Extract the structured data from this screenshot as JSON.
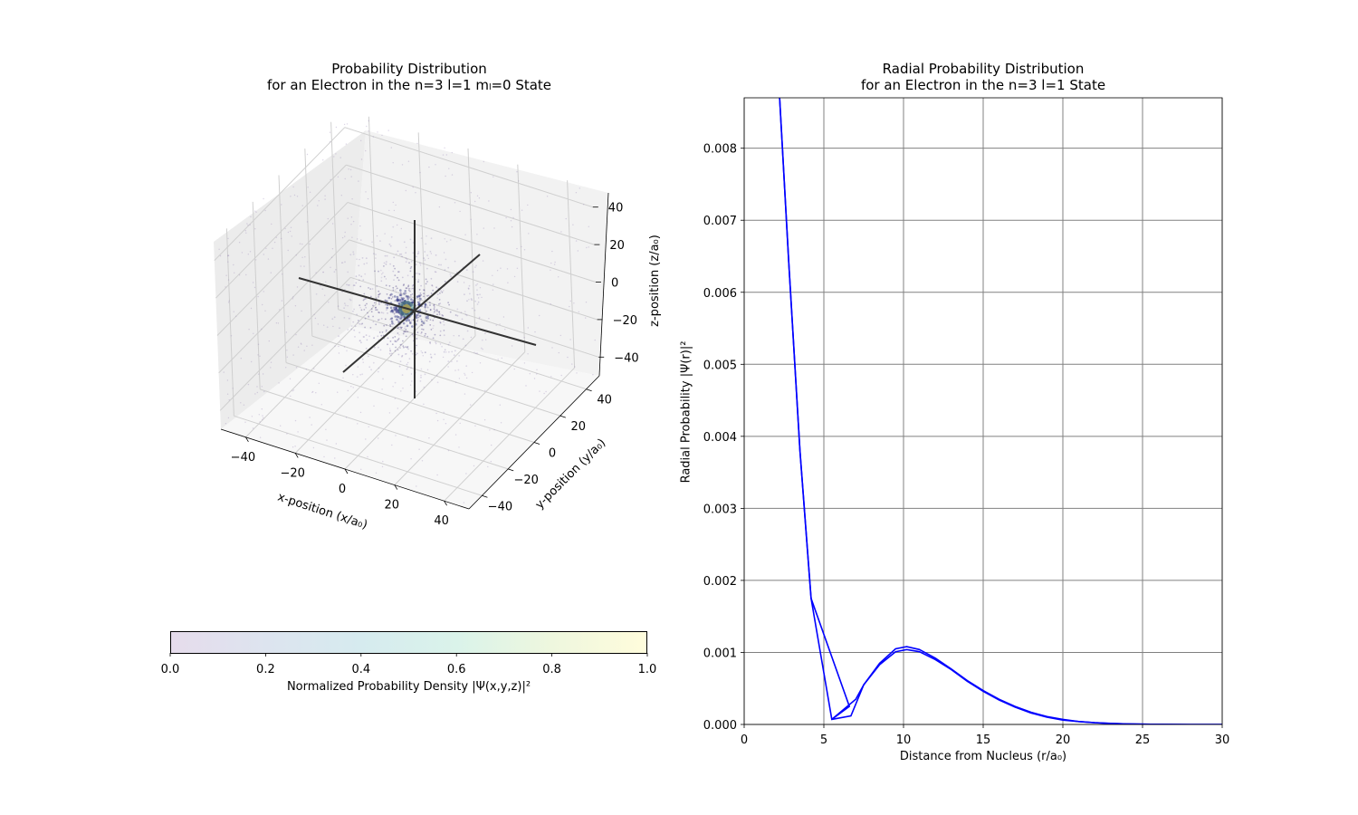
{
  "left_panel": {
    "title_line1": "Probability Distribution",
    "title_line2": "for an Electron in the n=3 l=1 mₗ=0 State",
    "xlabel": "x-position (x/a₀)",
    "ylabel": "y-position (y/a₀)",
    "zlabel": "z-position (z/a₀)",
    "x_ticks": [
      "−40",
      "−20",
      "0",
      "20",
      "40"
    ],
    "y_ticks": [
      "−40",
      "−20",
      "0",
      "20",
      "40"
    ],
    "z_ticks": [
      "40",
      "20",
      "0",
      "−20",
      "−40"
    ],
    "colorbar": {
      "label": "Normalized Probability Density |Ψ(x,y,z)|²",
      "ticks": [
        "0.0",
        "0.2",
        "0.4",
        "0.6",
        "0.8",
        "1.0"
      ],
      "colors": [
        "#e6dcec",
        "#dde4ef",
        "#d6ebef",
        "#daf3ea",
        "#eef7de",
        "#fffcdc"
      ]
    }
  },
  "chart_data": [
    {
      "type": "scatter",
      "title": "Probability Distribution\nfor an Electron in the n=3 l=1 mₗ=0 State",
      "xlabel": "x-position (x/a₀)",
      "ylabel": "y-position (y/a₀)",
      "zlabel": "z-position (z/a₀)",
      "xlim": [
        -50,
        50
      ],
      "ylim": [
        -50,
        50
      ],
      "zlim": [
        -50,
        50
      ],
      "colormap_label": "Normalized Probability Density |Ψ(x,y,z)|²",
      "color_range": [
        0.0,
        1.0
      ]
    },
    {
      "type": "line",
      "title": "Radial Probability Distribution\nfor an Electron in the n=3 l=1 State",
      "xlabel": "Distance from Nucleus (r/a₀)",
      "ylabel": "Radial Probability |Ψ(r)|²",
      "xlim": [
        0,
        30
      ],
      "ylim": [
        0,
        0.0087
      ],
      "grid": true,
      "color": "#0000ff",
      "x_ticks": [
        "0",
        "5",
        "10",
        "15",
        "20",
        "25",
        "30"
      ],
      "y_ticks": [
        "0.000",
        "0.001",
        "0.002",
        "0.003",
        "0.004",
        "0.005",
        "0.006",
        "0.007",
        "0.008"
      ],
      "series": [
        {
          "x": [
            2.2,
            2.8,
            3.5,
            4.2,
            5.5,
            6.7,
            7.5,
            8.5,
            9.5,
            10.2,
            11,
            12,
            13,
            14,
            15,
            16,
            17,
            18,
            19,
            20,
            21,
            22,
            23,
            24,
            25,
            26,
            28,
            30
          ],
          "y": [
            0.0088,
            0.0064,
            0.0038,
            0.00175,
            7e-05,
            0.00012,
            0.00055,
            0.00085,
            0.00105,
            0.00108,
            0.00104,
            0.00092,
            0.00077,
            0.00061,
            0.00047,
            0.00035,
            0.00025,
            0.00017,
            0.00011,
            7e-05,
            4e-05,
            2.5e-05,
            1.5e-05,
            8e-06,
            4e-06,
            2e-06,
            5e-07,
            1e-07
          ]
        },
        {
          "x": [
            2.2,
            2.8,
            3.5,
            4.2,
            6.6,
            5.5,
            7.0,
            7.5,
            8.5,
            9.5,
            10.2,
            11,
            12,
            13,
            14,
            15,
            16,
            17,
            18,
            19,
            20,
            21,
            22,
            23,
            24,
            25,
            26,
            28,
            30
          ],
          "y": [
            0.0088,
            0.0064,
            0.0038,
            0.00175,
            0.00025,
            7e-05,
            0.00035,
            0.00055,
            0.00083,
            0.00101,
            0.00104,
            0.00101,
            0.0009,
            0.00076,
            0.0006,
            0.00046,
            0.00034,
            0.00024,
            0.00016,
            0.0001,
            6e-05,
            4e-05,
            2.4e-05,
            1.4e-05,
            8e-06,
            4e-06,
            2e-06,
            4e-07,
            1e-07
          ]
        }
      ]
    }
  ]
}
